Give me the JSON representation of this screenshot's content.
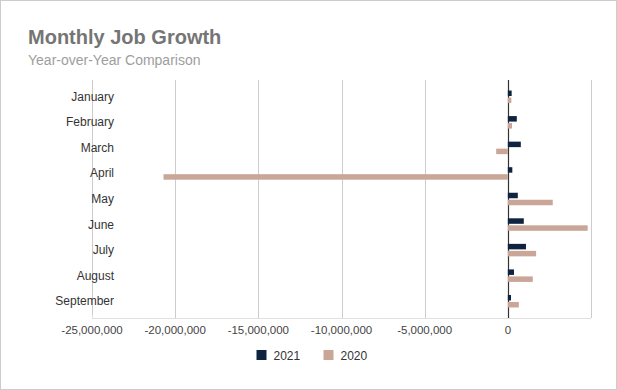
{
  "chart_data": {
    "type": "bar",
    "orientation": "horizontal",
    "title": "Monthly Job Growth",
    "subtitle": "Year-over-Year Comparison",
    "categories": [
      "January",
      "February",
      "March",
      "April",
      "May",
      "June",
      "July",
      "August",
      "September"
    ],
    "series": [
      {
        "name": "2021",
        "color": "#0e2340",
        "values": [
          230000,
          540000,
          780000,
          270000,
          600000,
          960000,
          1090000,
          370000,
          190000
        ]
      },
      {
        "name": "2020",
        "color": "#c9a697",
        "values": [
          210000,
          250000,
          -700000,
          -20700000,
          2700000,
          4800000,
          1700000,
          1500000,
          660000
        ]
      }
    ],
    "xlim": [
      -25000000,
      5000000
    ],
    "xticks": [
      {
        "value": -25000000,
        "label": "-25,000,000"
      },
      {
        "value": -20000000,
        "label": "-20,000,000"
      },
      {
        "value": -15000000,
        "label": "-15,000,000"
      },
      {
        "value": -10000000,
        "label": "-10,000,000"
      },
      {
        "value": -5000000,
        "label": "-5,000,000"
      },
      0
    ],
    "grid": true,
    "legend": "bottom"
  }
}
